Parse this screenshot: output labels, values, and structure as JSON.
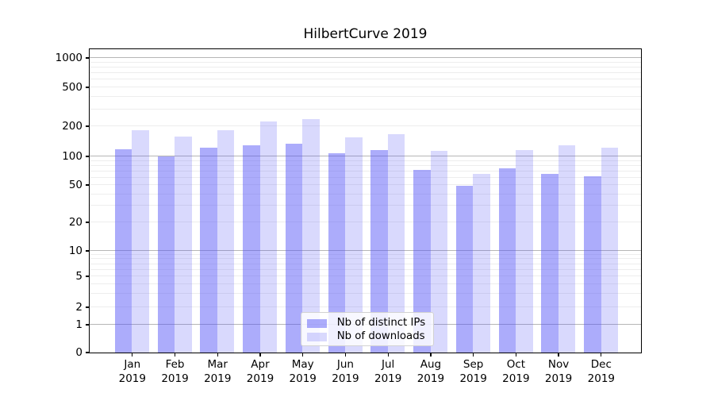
{
  "figure": {
    "title": "HilbertCurve 2019"
  },
  "chart_data": {
    "type": "bar",
    "title": "HilbertCurve 2019",
    "categories": [
      "Jan 2019",
      "Feb 2019",
      "Mar 2019",
      "Apr 2019",
      "May 2019",
      "Jun 2019",
      "Jul 2019",
      "Aug 2019",
      "Sep 2019",
      "Oct 2019",
      "Nov 2019",
      "Dec 2019"
    ],
    "series": [
      {
        "name": "Nb of distinct IPs",
        "color": "rgba(82,82,246,0.48)",
        "solid_hex": "#acacfa",
        "values": [
          118,
          100,
          123,
          130,
          134,
          108,
          116,
          72,
          49,
          76,
          66,
          62
        ]
      },
      {
        "name": "Nb of downloads",
        "color": "rgba(82,82,246,0.22)",
        "solid_hex": "#d9d9fd",
        "values": [
          183,
          160,
          183,
          224,
          240,
          155,
          167,
          114,
          66,
          116,
          130,
          122
        ]
      }
    ],
    "yscale": "symlog",
    "ylim": [
      0,
      1000
    ],
    "yticks": [
      0,
      1,
      2,
      5,
      10,
      20,
      50,
      100,
      200,
      500,
      1000
    ],
    "xlabel": "",
    "ylabel": "",
    "grid": true,
    "legend_position": "lower center",
    "colors": {
      "major_gridline": "#b6b6b6",
      "minor_gridline": "#ededed",
      "spine": "#000000",
      "background": "#ffffff"
    }
  }
}
